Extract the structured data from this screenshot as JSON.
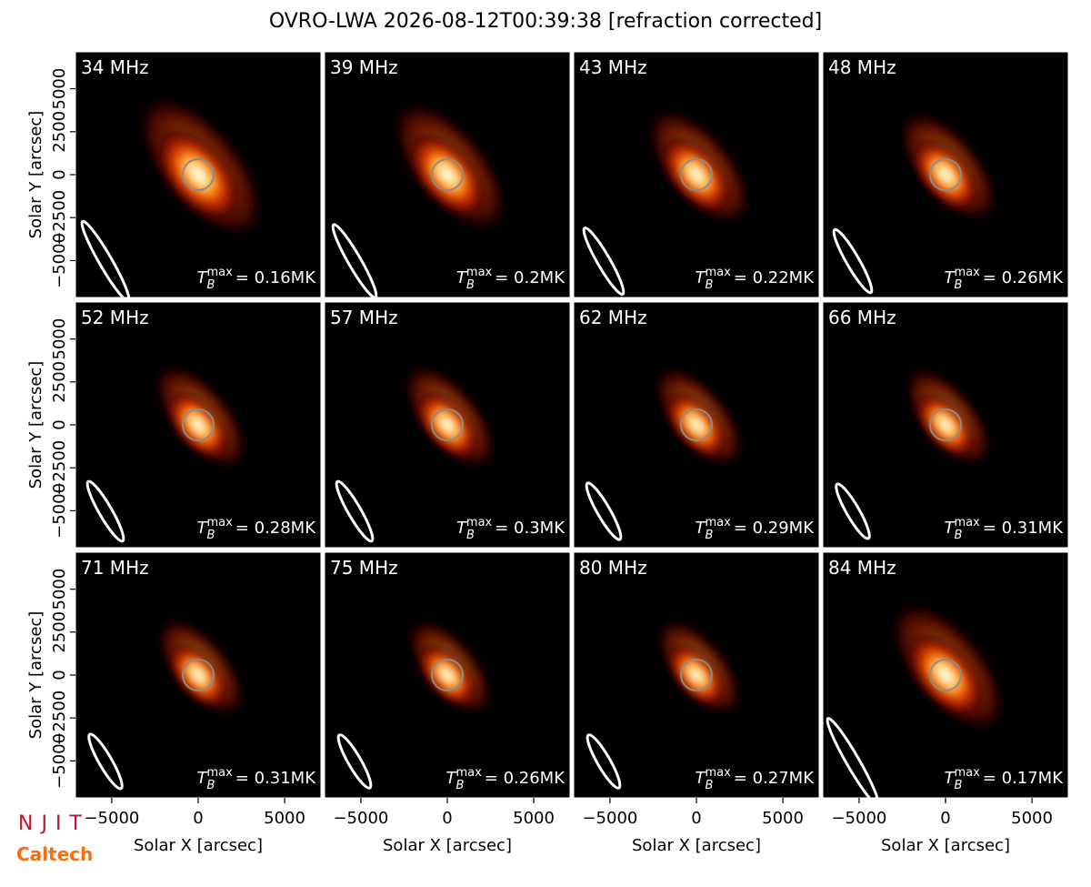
{
  "title": "OVRO-LWA 2026-08-12T00:39:38 [refraction corrected]",
  "logos": [
    "NJIT",
    "Caltech"
  ],
  "chart_data": [
    {
      "type": "image",
      "title": "34 MHz",
      "xlim": [
        -7100,
        7100
      ],
      "ylim": [
        -7150,
        7150
      ],
      "ylabel": "Solar Y [arcsec]",
      "yticks": [
        {
          "value": -5000,
          "label": "−5000"
        },
        {
          "value": -2500,
          "label": "−2500"
        },
        0,
        2500,
        5000
      ],
      "annotation": {
        "symbol": "T",
        "sub": "B",
        "sup": "max",
        "text": "= 0.16MK"
      }
    },
    {
      "type": "image",
      "title": "39 MHz",
      "xlim": [
        -7100,
        7100
      ],
      "ylim": [
        -7150,
        7150
      ],
      "annotation": {
        "symbol": "T",
        "sub": "B",
        "sup": "max",
        "text": "= 0.2MK"
      }
    },
    {
      "type": "image",
      "title": "43 MHz",
      "xlim": [
        -7100,
        7100
      ],
      "ylim": [
        -7150,
        7150
      ],
      "annotation": {
        "symbol": "T",
        "sub": "B",
        "sup": "max",
        "text": "= 0.22MK"
      }
    },
    {
      "type": "image",
      "title": "48 MHz",
      "xlim": [
        -7100,
        7100
      ],
      "ylim": [
        -7150,
        7150
      ],
      "annotation": {
        "symbol": "T",
        "sub": "B",
        "sup": "max",
        "text": "= 0.26MK"
      }
    },
    {
      "type": "image",
      "title": "52 MHz",
      "xlim": [
        -7100,
        7100
      ],
      "ylim": [
        -7150,
        7150
      ],
      "ylabel": "Solar Y [arcsec]",
      "yticks": [
        {
          "value": -5000,
          "label": "−5000"
        },
        {
          "value": -2500,
          "label": "−2500"
        },
        0,
        2500,
        5000
      ],
      "annotation": {
        "symbol": "T",
        "sub": "B",
        "sup": "max",
        "text": "= 0.28MK"
      }
    },
    {
      "type": "image",
      "title": "57 MHz",
      "xlim": [
        -7100,
        7100
      ],
      "ylim": [
        -7150,
        7150
      ],
      "annotation": {
        "symbol": "T",
        "sub": "B",
        "sup": "max",
        "text": "= 0.3MK"
      }
    },
    {
      "type": "image",
      "title": "62 MHz",
      "xlim": [
        -7100,
        7100
      ],
      "ylim": [
        -7150,
        7150
      ],
      "annotation": {
        "symbol": "T",
        "sub": "B",
        "sup": "max",
        "text": "= 0.29MK"
      }
    },
    {
      "type": "image",
      "title": "66 MHz",
      "xlim": [
        -7100,
        7100
      ],
      "ylim": [
        -7150,
        7150
      ],
      "annotation": {
        "symbol": "T",
        "sub": "B",
        "sup": "max",
        "text": "= 0.31MK"
      }
    },
    {
      "type": "image",
      "title": "71 MHz",
      "xlim": [
        -7100,
        7100
      ],
      "ylim": [
        -7150,
        7150
      ],
      "xlabel": "Solar X [arcsec]",
      "ylabel": "Solar Y [arcsec]",
      "xticks": [
        {
          "value": -5000,
          "label": "−5000"
        },
        0,
        5000
      ],
      "yticks": [
        {
          "value": -5000,
          "label": "−5000"
        },
        {
          "value": -2500,
          "label": "−2500"
        },
        0,
        2500,
        5000
      ],
      "annotation": {
        "symbol": "T",
        "sub": "B",
        "sup": "max",
        "text": "= 0.31MK"
      }
    },
    {
      "type": "image",
      "title": "75 MHz",
      "xlim": [
        -7100,
        7100
      ],
      "ylim": [
        -7150,
        7150
      ],
      "xlabel": "Solar X [arcsec]",
      "xticks": [
        {
          "value": -5000,
          "label": "−5000"
        },
        0,
        5000
      ],
      "annotation": {
        "symbol": "T",
        "sub": "B",
        "sup": "max",
        "text": "= 0.26MK"
      }
    },
    {
      "type": "image",
      "title": "80 MHz",
      "xlim": [
        -7100,
        7100
      ],
      "ylim": [
        -7150,
        7150
      ],
      "xlabel": "Solar X [arcsec]",
      "xticks": [
        {
          "value": -5000,
          "label": "−5000"
        },
        0,
        5000
      ],
      "annotation": {
        "symbol": "T",
        "sub": "B",
        "sup": "max",
        "text": "= 0.27MK"
      }
    },
    {
      "type": "image",
      "title": "84 MHz",
      "xlim": [
        -7100,
        7100
      ],
      "ylim": [
        -7150,
        7150
      ],
      "xlabel": "Solar X [arcsec]",
      "xticks": [
        {
          "value": -5000,
          "label": "−5000"
        },
        0,
        5000
      ],
      "annotation": {
        "symbol": "T",
        "sub": "B",
        "sup": "max",
        "text": "= 0.17MK"
      }
    }
  ]
}
